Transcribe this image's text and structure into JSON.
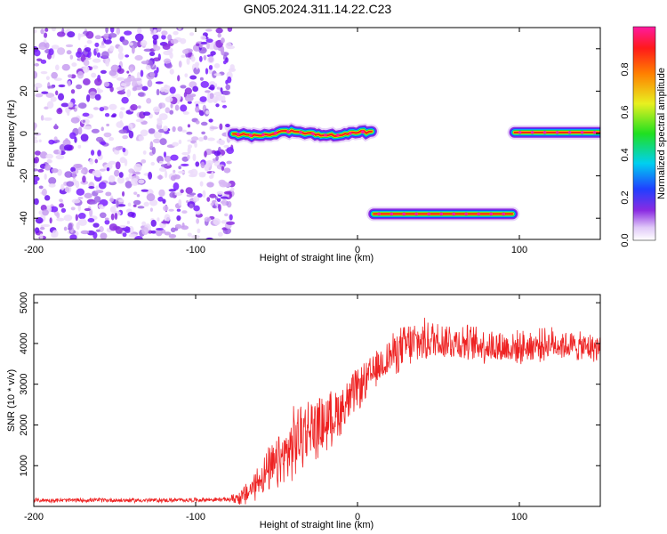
{
  "title": "GN05.2024.311.14.22.C23",
  "colors": {
    "snr_line": "#ee2222",
    "axis": "#000000",
    "noise": "#8a2be2"
  },
  "chart_data": [
    {
      "type": "heatmap",
      "xlabel": "Height of straight line (km)",
      "ylabel": "Frequency (Hz)",
      "xlim": [
        -200,
        150
      ],
      "ylim": [
        -50,
        50
      ],
      "x_ticks": [
        -200,
        -100,
        0,
        100
      ],
      "y_ticks": [
        -40,
        -20,
        0,
        20,
        40
      ],
      "colorbar": {
        "label": "Normalized spectral amplitude",
        "range": [
          0,
          1
        ],
        "ticks": [
          0.0,
          0.2,
          0.4,
          0.6,
          0.8
        ]
      },
      "regions": [
        {
          "x_range": [
            -200,
            -77
          ],
          "y_range": [
            -50,
            50
          ],
          "kind": "broadband-noise",
          "amplitude": 0.1
        },
        {
          "x_range": [
            -77,
            10
          ],
          "y_center": 0,
          "kind": "tonal-line",
          "amplitude": 0.9
        },
        {
          "x_range": [
            10,
            97
          ],
          "y_center": -38,
          "kind": "tonal-line",
          "amplitude": 1.0
        },
        {
          "x_range": [
            97,
            150
          ],
          "y_center": 0.5,
          "kind": "tonal-line",
          "amplitude": 1.0
        }
      ]
    },
    {
      "type": "line",
      "xlabel": "Height of straight line (km)",
      "ylabel": "SNR (10 * v/v)",
      "xlim": [
        -200,
        150
      ],
      "ylim": [
        0,
        5200
      ],
      "x_ticks": [
        -200,
        -100,
        0,
        100
      ],
      "y_ticks": [
        1000,
        2000,
        3000,
        4000,
        5000
      ],
      "series": [
        {
          "x": [
            -200,
            -180,
            -160,
            -140,
            -120,
            -100,
            -80,
            -70,
            -65,
            -60,
            -55,
            -50,
            -45,
            -40,
            -35,
            -30,
            -25,
            -20,
            -15,
            -10,
            -5,
            0,
            5,
            10,
            15,
            20,
            25,
            30,
            35,
            40,
            50,
            60,
            70,
            80,
            90,
            100,
            110,
            120,
            130,
            140,
            150
          ],
          "values": [
            150,
            150,
            155,
            150,
            150,
            160,
            170,
            250,
            450,
            700,
            850,
            1000,
            1200,
            1500,
            1750,
            1900,
            1950,
            2050,
            2200,
            2400,
            2600,
            2900,
            3050,
            3300,
            3500,
            3700,
            3800,
            3950,
            4000,
            4050,
            4100,
            4050,
            4000,
            3950,
            3900,
            3900,
            3950,
            4000,
            3950,
            3900,
            3900
          ],
          "spread": [
            60,
            60,
            60,
            60,
            60,
            60,
            60,
            300,
            400,
            500,
            650,
            750,
            850,
            1000,
            1000,
            900,
            850,
            800,
            750,
            700,
            650,
            600,
            550,
            500,
            500,
            550,
            600,
            650,
            650,
            600,
            550,
            550,
            500,
            500,
            500,
            450,
            450,
            450,
            400,
            400,
            400
          ]
        }
      ]
    }
  ]
}
